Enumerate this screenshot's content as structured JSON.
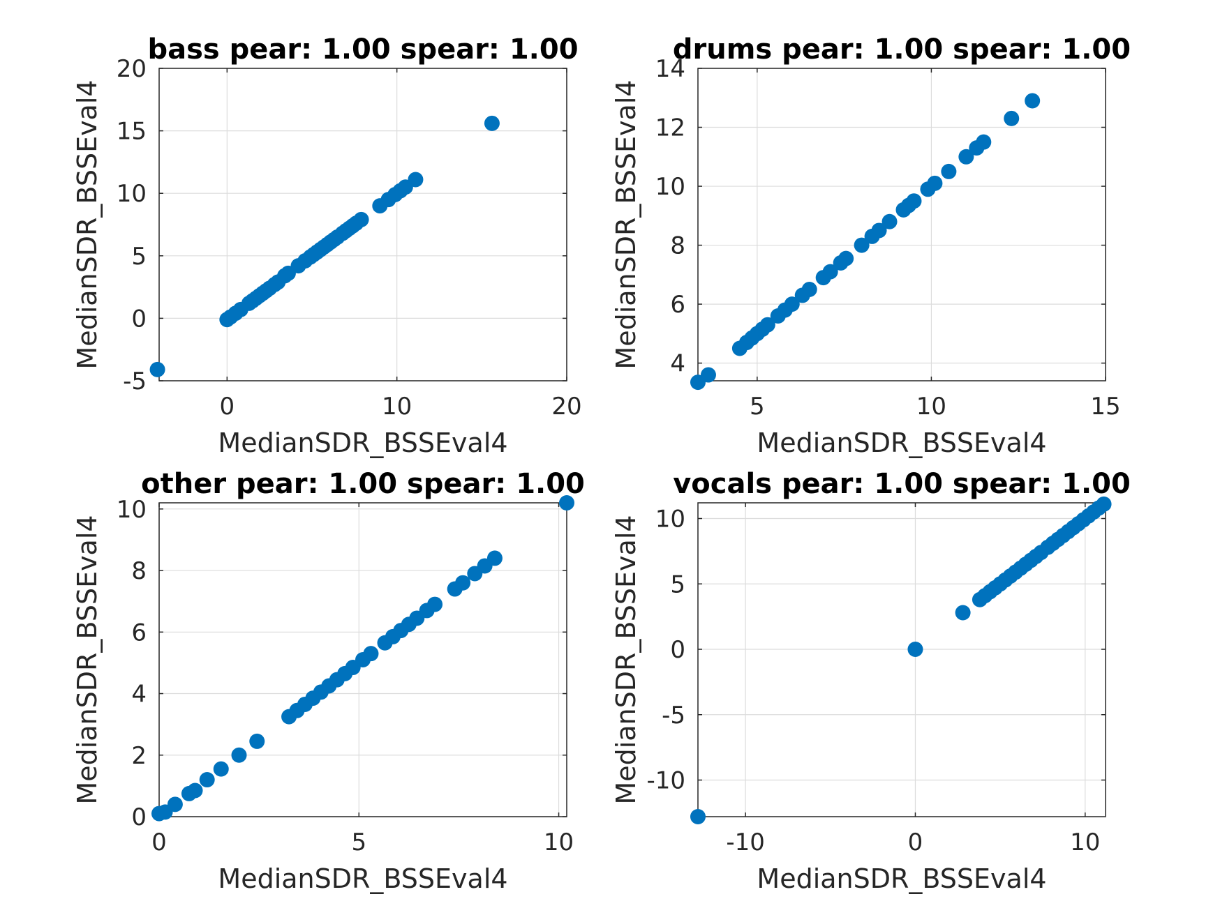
{
  "chart_data": [
    {
      "type": "scatter",
      "title": "bass pear: 1.00 spear: 1.00",
      "xlabel": "MedianSDR_BSSEval4",
      "ylabel": "MedianSDR_BSSEval4",
      "xlim": [
        -4,
        20
      ],
      "ylim": [
        -5,
        20
      ],
      "xticks": [
        0,
        10,
        20
      ],
      "xticklabels": [
        "0",
        "10",
        "20"
      ],
      "yticks": [
        -5,
        0,
        5,
        10,
        15,
        20
      ],
      "yticklabels": [
        "-5",
        "0",
        "5",
        "10",
        "15",
        "20"
      ],
      "grid": true,
      "color": "#0072BD",
      "points": [
        [
          -4.1,
          -4.1
        ],
        [
          0,
          -0.1
        ],
        [
          0.2,
          0.1
        ],
        [
          0.5,
          0.4
        ],
        [
          0.8,
          0.7
        ],
        [
          1.3,
          1.2
        ],
        [
          1.5,
          1.4
        ],
        [
          1.7,
          1.6
        ],
        [
          1.9,
          1.8
        ],
        [
          2.1,
          2.0
        ],
        [
          2.3,
          2.2
        ],
        [
          2.5,
          2.4
        ],
        [
          2.8,
          2.7
        ],
        [
          3.0,
          2.9
        ],
        [
          3.4,
          3.4
        ],
        [
          3.6,
          3.6
        ],
        [
          4.2,
          4.2
        ],
        [
          4.6,
          4.6
        ],
        [
          4.9,
          4.9
        ],
        [
          5.1,
          5.1
        ],
        [
          5.3,
          5.3
        ],
        [
          5.5,
          5.5
        ],
        [
          5.7,
          5.7
        ],
        [
          5.9,
          5.9
        ],
        [
          6.1,
          6.1
        ],
        [
          6.3,
          6.3
        ],
        [
          6.5,
          6.5
        ],
        [
          6.8,
          6.8
        ],
        [
          7.0,
          7.0
        ],
        [
          7.2,
          7.2
        ],
        [
          7.4,
          7.4
        ],
        [
          7.6,
          7.6
        ],
        [
          7.9,
          7.9
        ],
        [
          9.0,
          9.0
        ],
        [
          9.5,
          9.5
        ],
        [
          9.9,
          9.9
        ],
        [
          10.2,
          10.2
        ],
        [
          10.5,
          10.5
        ],
        [
          11.1,
          11.1
        ],
        [
          15.6,
          15.6
        ]
      ]
    },
    {
      "type": "scatter",
      "title": "drums pear: 1.00 spear: 1.00",
      "xlabel": "MedianSDR_BSSEval4",
      "ylabel": "MedianSDR_BSSEval4",
      "xlim": [
        3.3,
        15
      ],
      "ylim": [
        3.4,
        14
      ],
      "xticks": [
        5,
        10,
        15
      ],
      "xticklabels": [
        "5",
        "10",
        "15"
      ],
      "yticks": [
        4,
        6,
        8,
        10,
        12,
        14
      ],
      "yticklabels": [
        "4",
        "6",
        "8",
        "10",
        "12",
        "14"
      ],
      "grid": true,
      "color": "#0072BD",
      "points": [
        [
          3.3,
          3.35
        ],
        [
          3.6,
          3.6
        ],
        [
          4.5,
          4.5
        ],
        [
          4.7,
          4.7
        ],
        [
          4.85,
          4.85
        ],
        [
          5.0,
          5.0
        ],
        [
          5.15,
          5.15
        ],
        [
          5.3,
          5.3
        ],
        [
          5.6,
          5.6
        ],
        [
          5.8,
          5.8
        ],
        [
          6.0,
          6.0
        ],
        [
          6.3,
          6.3
        ],
        [
          6.5,
          6.5
        ],
        [
          6.9,
          6.9
        ],
        [
          7.1,
          7.1
        ],
        [
          7.4,
          7.4
        ],
        [
          7.55,
          7.55
        ],
        [
          8.0,
          8.0
        ],
        [
          8.3,
          8.3
        ],
        [
          8.5,
          8.5
        ],
        [
          8.8,
          8.8
        ],
        [
          9.2,
          9.2
        ],
        [
          9.35,
          9.35
        ],
        [
          9.5,
          9.5
        ],
        [
          9.9,
          9.9
        ],
        [
          10.1,
          10.1
        ],
        [
          10.5,
          10.5
        ],
        [
          11.0,
          11.0
        ],
        [
          11.3,
          11.3
        ],
        [
          11.5,
          11.5
        ],
        [
          12.3,
          12.3
        ],
        [
          12.9,
          12.9
        ]
      ]
    },
    {
      "type": "scatter",
      "title": "other pear: 1.00 spear: 1.00",
      "xlabel": "MedianSDR_BSSEval4",
      "ylabel": "MedianSDR_BSSEval4",
      "xlim": [
        0,
        10.2
      ],
      "ylim": [
        0,
        10.2
      ],
      "xticks": [
        0,
        5,
        10
      ],
      "xticklabels": [
        "0",
        "5",
        "10"
      ],
      "yticks": [
        0,
        2,
        4,
        6,
        8,
        10
      ],
      "yticklabels": [
        "0",
        "2",
        "4",
        "6",
        "8",
        "10"
      ],
      "grid": true,
      "color": "#0072BD",
      "points": [
        [
          0,
          0.1
        ],
        [
          0.15,
          0.15
        ],
        [
          0.4,
          0.4
        ],
        [
          0.75,
          0.75
        ],
        [
          0.9,
          0.85
        ],
        [
          1.2,
          1.2
        ],
        [
          1.55,
          1.55
        ],
        [
          2.0,
          2.0
        ],
        [
          2.45,
          2.45
        ],
        [
          3.25,
          3.25
        ],
        [
          3.45,
          3.45
        ],
        [
          3.65,
          3.65
        ],
        [
          3.85,
          3.85
        ],
        [
          4.05,
          4.05
        ],
        [
          4.25,
          4.25
        ],
        [
          4.45,
          4.45
        ],
        [
          4.65,
          4.65
        ],
        [
          4.85,
          4.85
        ],
        [
          5.1,
          5.1
        ],
        [
          5.3,
          5.3
        ],
        [
          5.65,
          5.65
        ],
        [
          5.85,
          5.85
        ],
        [
          6.05,
          6.05
        ],
        [
          6.25,
          6.25
        ],
        [
          6.45,
          6.45
        ],
        [
          6.7,
          6.7
        ],
        [
          6.9,
          6.9
        ],
        [
          7.4,
          7.4
        ],
        [
          7.6,
          7.6
        ],
        [
          7.9,
          7.9
        ],
        [
          8.15,
          8.15
        ],
        [
          8.4,
          8.4
        ],
        [
          10.2,
          10.2
        ]
      ]
    },
    {
      "type": "scatter",
      "title": "vocals pear: 1.00 spear: 1.00",
      "xlabel": "MedianSDR_BSSEval4",
      "ylabel": "MedianSDR_BSSEval4",
      "xlim": [
        -12.8,
        11.2
      ],
      "ylim": [
        -12.8,
        11.2
      ],
      "xticks": [
        -10,
        0,
        10
      ],
      "xticklabels": [
        "-10",
        "0",
        "10"
      ],
      "yticks": [
        -10,
        -5,
        0,
        5,
        10
      ],
      "yticklabels": [
        "-10",
        "-5",
        "0",
        "5",
        "10"
      ],
      "grid": true,
      "color": "#0072BD",
      "points": [
        [
          -12.8,
          -12.8
        ],
        [
          0,
          0
        ],
        [
          2.8,
          2.8
        ],
        [
          3.8,
          3.8
        ],
        [
          4.1,
          4.1
        ],
        [
          4.4,
          4.4
        ],
        [
          4.7,
          4.7
        ],
        [
          5.0,
          5.0
        ],
        [
          5.3,
          5.3
        ],
        [
          5.6,
          5.6
        ],
        [
          5.9,
          5.9
        ],
        [
          6.2,
          6.2
        ],
        [
          6.5,
          6.5
        ],
        [
          6.8,
          6.8
        ],
        [
          7.1,
          7.1
        ],
        [
          7.4,
          7.4
        ],
        [
          7.8,
          7.8
        ],
        [
          8.1,
          8.1
        ],
        [
          8.4,
          8.4
        ],
        [
          8.7,
          8.7
        ],
        [
          9.0,
          9.0
        ],
        [
          9.3,
          9.3
        ],
        [
          9.6,
          9.6
        ],
        [
          9.9,
          9.9
        ],
        [
          10.2,
          10.2
        ],
        [
          10.5,
          10.5
        ],
        [
          10.8,
          10.8
        ],
        [
          11.1,
          11.1
        ]
      ]
    }
  ]
}
